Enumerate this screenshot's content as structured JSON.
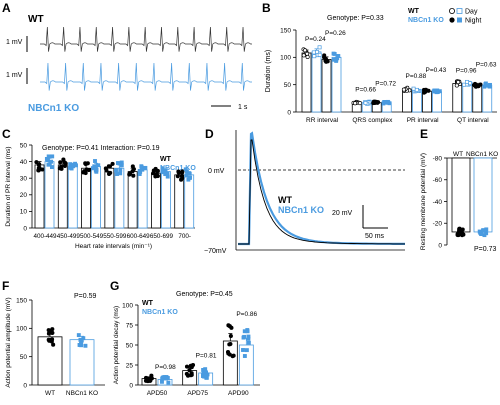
{
  "colors": {
    "wt": "#000000",
    "ko": "#4a9be0",
    "ko_light": "#a9cdef",
    "axis": "#000000"
  },
  "panels": {
    "A": {
      "letter": "A",
      "wt_label": "WT",
      "ko_label": "NBCn1 KO",
      "scale_v": "1 mV",
      "scale_v2": "1 mV",
      "scale_t": "1 s"
    },
    "B": {
      "letter": "B",
      "genotype_text": "Genotype: P=0.33",
      "legend_wt": "WT",
      "legend_ko": "NBCn1 KO",
      "legend_day": "Day",
      "legend_night": "Night"
    },
    "C": {
      "letter": "C",
      "stats_text": "Genotype: P=0.41     Interaction: P=0.19",
      "legend_wt": "WT",
      "legend_ko": "NBCn1 KO"
    },
    "D": {
      "letter": "D",
      "zero_label": "0 mV",
      "base_label": "−70mV",
      "legend_wt": "WT",
      "legend_ko": "NBCn1 KO",
      "scale_v": "20 mV",
      "scale_t": "50 ms"
    },
    "E": {
      "letter": "E",
      "wt_label": "WT",
      "ko_label": "NBCn1 KO",
      "p_text": "P=0.73"
    },
    "F": {
      "letter": "F",
      "p_text": "P=0.59"
    },
    "G": {
      "letter": "G",
      "genotype_text": "Genotype: P=0.45",
      "legend_wt": "WT",
      "legend_ko": "NBCn1 KO"
    }
  },
  "chart_data": [
    {
      "id": "B",
      "type": "bar",
      "ylabel": "Duration (ms)",
      "ylim": [
        0,
        150
      ],
      "yticks": [
        0,
        50,
        100,
        150
      ],
      "categories": [
        "RR interval",
        "QRS complex",
        "PR interval",
        "QT interval"
      ],
      "series": [
        {
          "name": "WT Day",
          "values": [
            108,
            17,
            42,
            52
          ]
        },
        {
          "name": "NBCn1 KO Day",
          "values": [
            110,
            17,
            41,
            51
          ]
        },
        {
          "name": "WT Night",
          "values": [
            96,
            17,
            38,
            50
          ]
        },
        {
          "name": "NBCn1 KO Night",
          "values": [
            100,
            17,
            37,
            49
          ]
        }
      ],
      "p_values": [
        "P=0.24",
        "P=0.26",
        "P=0.66",
        "P=0.72",
        "P=0.88",
        "P=0.43",
        "P=0.96",
        "P=0.63"
      ]
    },
    {
      "id": "C",
      "type": "bar",
      "ylabel": "Duration of PR interval (ms)",
      "xlabel": "Heart rate intervals (min⁻¹)",
      "ylim": [
        0,
        50
      ],
      "yticks": [
        0,
        10,
        20,
        30,
        40,
        50
      ],
      "categories": [
        "400-449",
        "450-499",
        "500-549",
        "550-599",
        "600-649",
        "650-699",
        "700-"
      ],
      "series": [
        {
          "name": "WT",
          "values": [
            38,
            38,
            36,
            36,
            34,
            33,
            32
          ]
        },
        {
          "name": "NBCn1 KO",
          "values": [
            40,
            37,
            37,
            36,
            35,
            34,
            32
          ]
        }
      ]
    },
    {
      "id": "E",
      "type": "bar",
      "ylabel": "Resting membrane potential (mV)",
      "ylim": [
        -80,
        0
      ],
      "yticks": [
        0,
        -20,
        -40,
        -60,
        -80
      ],
      "categories": [
        "WT",
        "NBCn1 KO"
      ],
      "values": [
        -68,
        -68
      ]
    },
    {
      "id": "F",
      "type": "bar",
      "ylabel": "Action potential amplitude (mV)",
      "ylim": [
        0,
        150
      ],
      "yticks": [
        0,
        50,
        100,
        150
      ],
      "categories": [
        "WT",
        "NBCn1 KO"
      ],
      "values": [
        85,
        80
      ]
    },
    {
      "id": "G",
      "type": "bar",
      "ylabel": "Action potential decay (ms)",
      "ylim": [
        0,
        100
      ],
      "yticks": [
        0,
        25,
        50,
        75,
        100
      ],
      "categories": [
        "APD50",
        "APD75",
        "APD90"
      ],
      "series": [
        {
          "name": "WT",
          "values": [
            8,
            18,
            55
          ]
        },
        {
          "name": "NBCn1 KO",
          "values": [
            7,
            15,
            50
          ]
        }
      ],
      "p_values": [
        "P=0.98",
        "P=0.81",
        "P=0.86"
      ]
    }
  ]
}
